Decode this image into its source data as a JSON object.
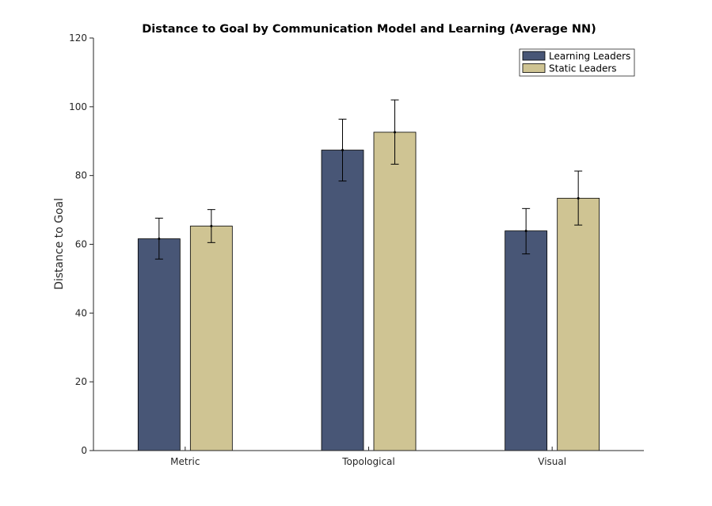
{
  "chart_data": {
    "type": "bar",
    "title": "Distance to Goal by Communication Model and Learning (Average NN)",
    "xlabel": "",
    "ylabel": "Distance to Goal",
    "categories": [
      "Metric",
      "Topological",
      "Visual"
    ],
    "ylim": [
      0,
      120
    ],
    "yticks": [
      0,
      20,
      40,
      60,
      80,
      100,
      120
    ],
    "grid": false,
    "legend_position": "top-right",
    "series": [
      {
        "name": "Learning Leaders",
        "color": "#485676",
        "values": [
          61.6,
          87.4,
          63.9
        ],
        "error_low": [
          55.7,
          78.4,
          57.2
        ],
        "error_high": [
          67.6,
          96.4,
          70.4
        ]
      },
      {
        "name": "Static Leaders",
        "color": "#cfc493",
        "values": [
          65.3,
          92.6,
          73.4
        ],
        "error_low": [
          60.5,
          83.3,
          65.6
        ],
        "error_high": [
          70.1,
          102.0,
          81.3
        ]
      }
    ]
  }
}
